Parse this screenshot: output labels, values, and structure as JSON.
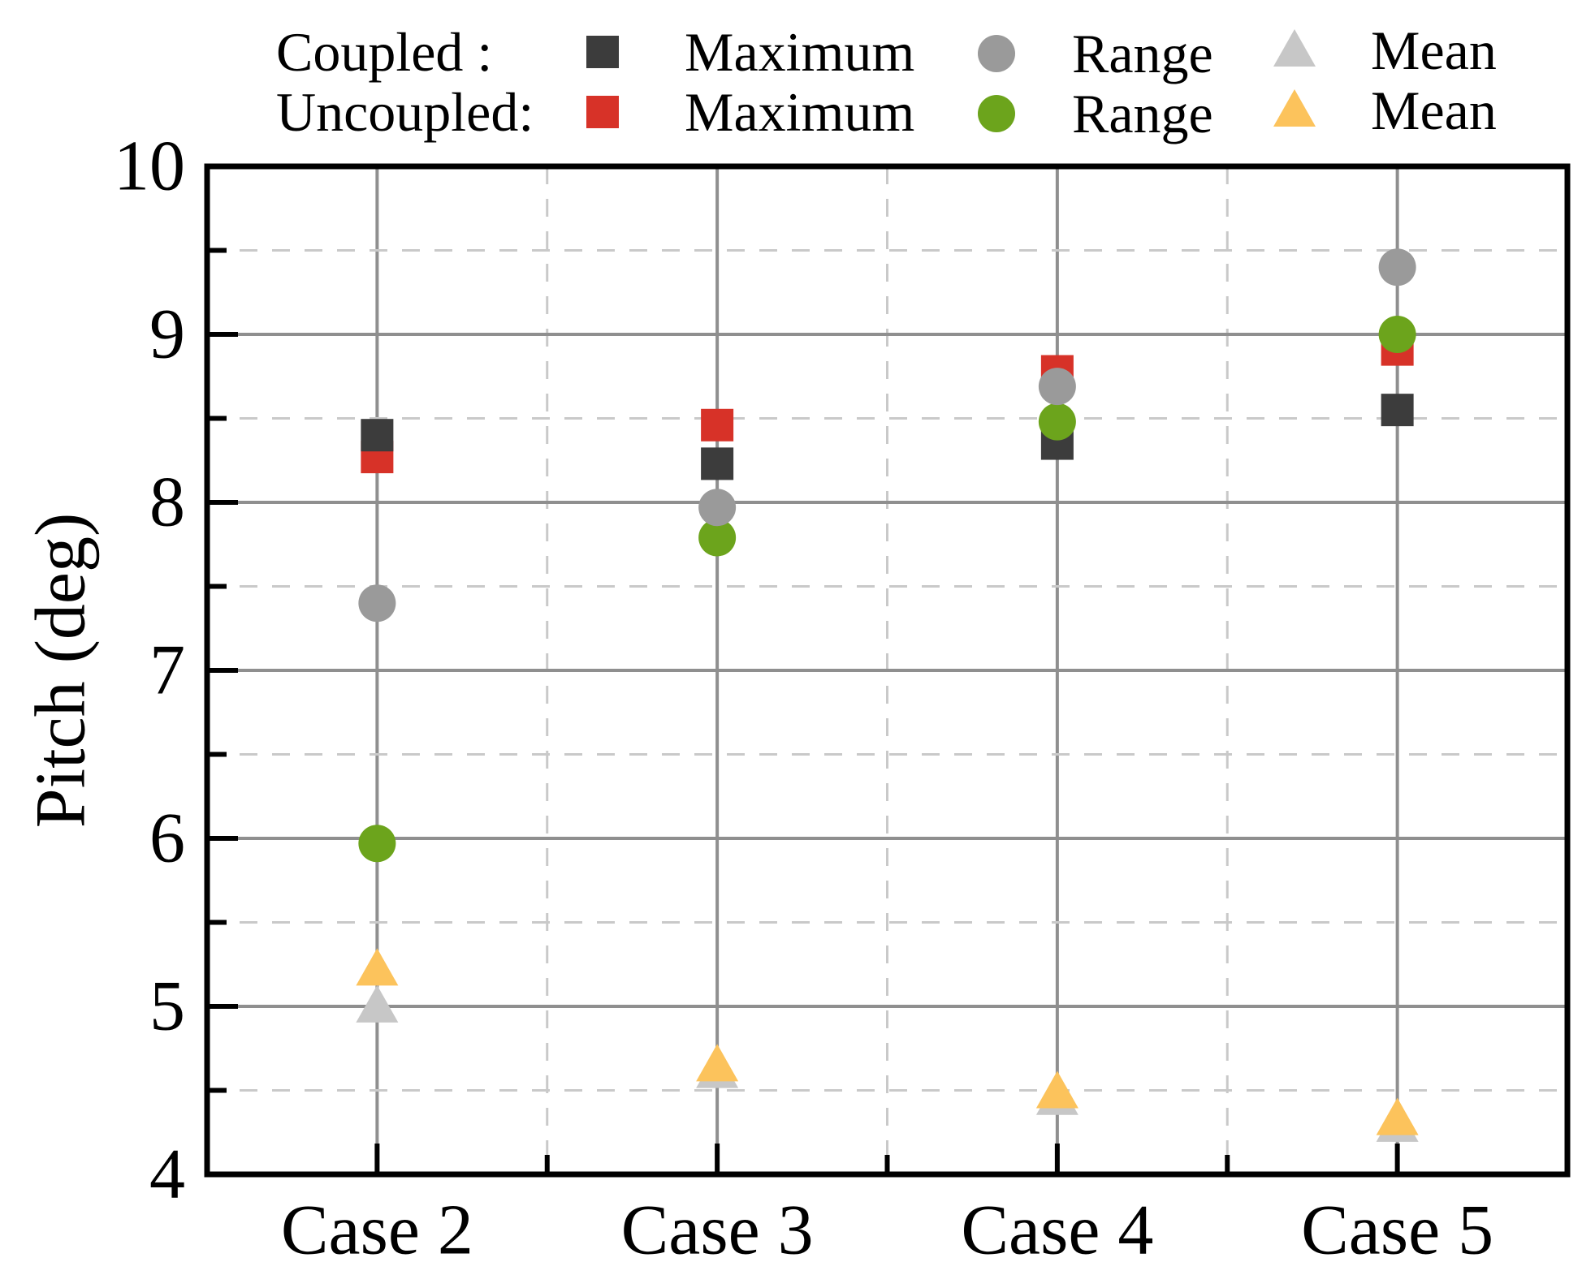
{
  "figure": {
    "background": "#ffffff"
  },
  "legend": {
    "rows": [
      {
        "prefix": "Coupled :",
        "items": [
          {
            "label": "Maximum",
            "marker": "square",
            "color": "#3c3c3c"
          },
          {
            "label": "Range",
            "marker": "circle",
            "color": "#9a9a9a"
          },
          {
            "label": "Mean",
            "marker": "triangle",
            "color": "#c7c7c7"
          }
        ]
      },
      {
        "prefix": "Uncoupled:",
        "items": [
          {
            "label": "Maximum",
            "marker": "square",
            "color": "#d73228"
          },
          {
            "label": "Range",
            "marker": "circle",
            "color": "#6ca41c"
          },
          {
            "label": "Mean",
            "marker": "triangle",
            "color": "#fcc35c"
          }
        ]
      }
    ]
  },
  "chart_data": {
    "type": "scatter",
    "title": "",
    "xlabel": "",
    "ylabel": "Pitch (deg)",
    "ylim": [
      4,
      10
    ],
    "y_major_ticks": [
      4,
      5,
      6,
      7,
      8,
      9,
      10
    ],
    "y_minor_ticks": [
      4.5,
      5.5,
      6.5,
      7.5,
      8.5,
      9.5
    ],
    "grid": {
      "major_solid": true,
      "minor_dashed": true,
      "solid_color": "#8f8f8f",
      "dashed_color": "#c9c9c9",
      "x_minor_between_categories": true
    },
    "legend_position": "top-outside",
    "categories": [
      "Case 2",
      "Case 3",
      "Case 4",
      "Case 5"
    ],
    "series": [
      {
        "name": "Uncoupled Maximum",
        "group": "Uncoupled",
        "stat": "Maximum",
        "marker": "square",
        "color": "#d73228",
        "values": [
          8.27,
          8.46,
          8.78,
          8.91
        ]
      },
      {
        "name": "Coupled Maximum",
        "group": "Coupled",
        "stat": "Maximum",
        "marker": "square",
        "color": "#3c3c3c",
        "values": [
          8.4,
          8.23,
          8.35,
          8.55
        ]
      },
      {
        "name": "Uncoupled Range",
        "group": "Uncoupled",
        "stat": "Range",
        "marker": "circle",
        "color": "#6ca41c",
        "values": [
          5.97,
          7.79,
          8.48,
          9.0
        ]
      },
      {
        "name": "Coupled Range",
        "group": "Coupled",
        "stat": "Range",
        "marker": "circle",
        "color": "#9a9a9a",
        "values": [
          7.4,
          7.97,
          8.69,
          9.4
        ]
      },
      {
        "name": "Coupled Mean",
        "group": "Coupled",
        "stat": "Mean",
        "marker": "triangle",
        "color": "#c7c7c7",
        "values": [
          5.01,
          4.62,
          4.46,
          4.3
        ]
      },
      {
        "name": "Uncoupled Mean",
        "group": "Uncoupled",
        "stat": "Mean",
        "marker": "triangle",
        "color": "#fcc35c",
        "values": [
          5.23,
          4.66,
          4.5,
          4.34
        ]
      }
    ]
  }
}
